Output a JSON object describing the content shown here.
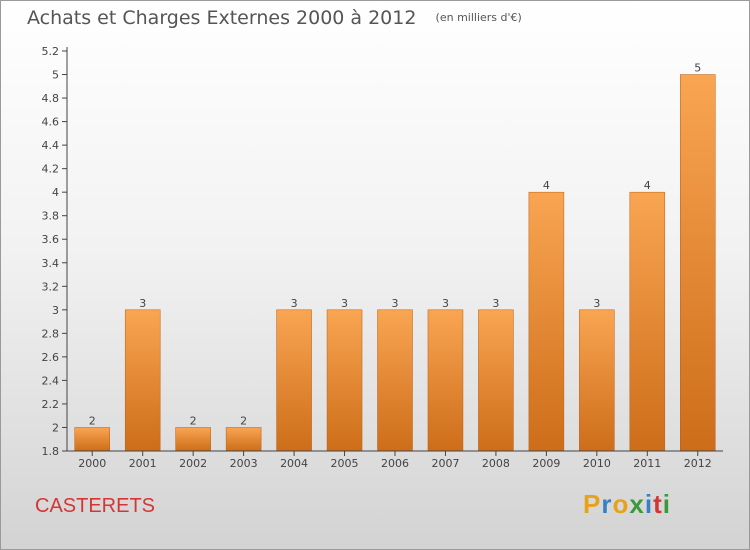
{
  "chart_data": {
    "type": "bar",
    "title": "Achats et Charges Externes 2000 à 2012",
    "subtitle": "(en milliers d'€)",
    "xlabel": "",
    "ylabel": "",
    "categories": [
      "2000",
      "2001",
      "2002",
      "2003",
      "2004",
      "2005",
      "2006",
      "2007",
      "2008",
      "2009",
      "2010",
      "2011",
      "2012"
    ],
    "values": [
      2,
      3,
      2,
      2,
      3,
      3,
      3,
      3,
      3,
      4,
      3,
      4,
      5
    ],
    "value_labels": [
      "2",
      "3",
      "2",
      "2",
      "3",
      "3",
      "3",
      "3",
      "3",
      "4",
      "3",
      "4",
      "5"
    ],
    "y_ticks": [
      "1.8",
      "2",
      "2.2",
      "2.4",
      "2.6",
      "2.8",
      "3",
      "3.2",
      "3.4",
      "3.6",
      "3.8",
      "4",
      "4.2",
      "4.4",
      "4.6",
      "4.8",
      "5",
      "5.2"
    ],
    "ylim": [
      1.8,
      5.2
    ],
    "grid": false,
    "bar_color": "#f08a2c"
  },
  "footer": {
    "commune": "CASTERETS",
    "brand_letters": [
      "P",
      "r",
      "o",
      "x",
      "i",
      "t",
      "i"
    ],
    "brand_colors": [
      "#e8a21a",
      "#3a7fc4",
      "#e8a21a",
      "#3a9a3a",
      "#3a7fc4",
      "#d63535",
      "#3a9a3a"
    ]
  }
}
